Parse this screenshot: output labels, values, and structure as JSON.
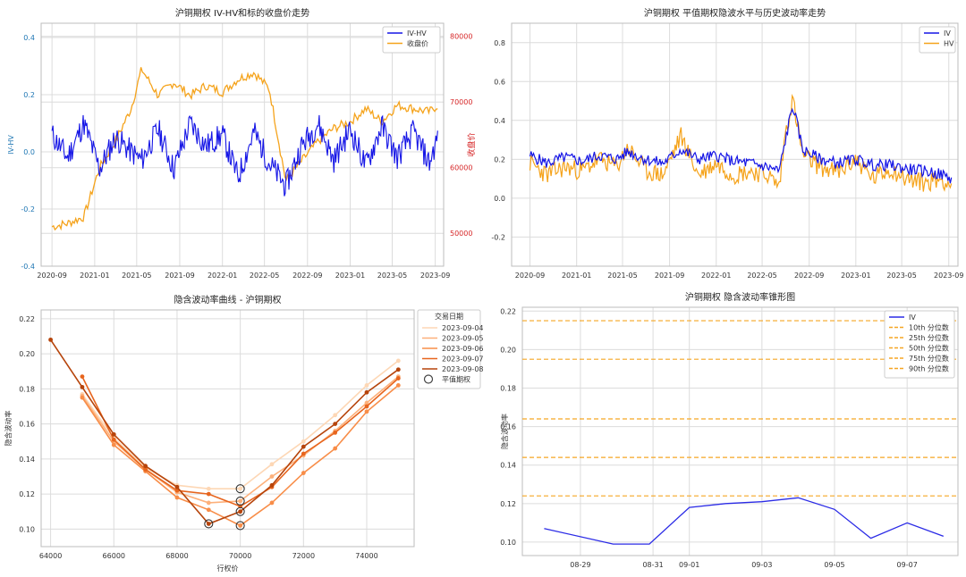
{
  "chart_data": [
    {
      "id": "iv_hv_close",
      "type": "line",
      "title": "沪铜期权 IV-HV和标的收盘价走势",
      "ylabel": "IV-HV",
      "y2label": "收盘价",
      "x_ticks": [
        "2020-09",
        "2021-01",
        "2021-05",
        "2021-09",
        "2022-01",
        "2022-05",
        "2022-09",
        "2023-01",
        "2023-05",
        "2023-09"
      ],
      "y_ticks": [
        "0.4",
        "0.2",
        "0.0",
        "-0.2",
        "-0.4"
      ],
      "y2_ticks": [
        "80000",
        "70000",
        "60000",
        "50000"
      ],
      "ylim": [
        -0.4,
        0.45
      ],
      "y2lim": [
        45000,
        82000
      ],
      "x": [
        "2020-09-01",
        "2020-10-15",
        "2020-12-01",
        "2021-01-15",
        "2021-03-01",
        "2021-04-15",
        "2021-05-15",
        "2021-07-01",
        "2021-08-15",
        "2021-10-01",
        "2021-11-15",
        "2022-01-01",
        "2022-02-15",
        "2022-04-01",
        "2022-05-15",
        "2022-07-01",
        "2022-08-15",
        "2022-10-01",
        "2022-11-15",
        "2023-01-01",
        "2023-02-15",
        "2023-04-01",
        "2023-05-15",
        "2023-07-01",
        "2023-08-15",
        "2023-09-08"
      ],
      "series": [
        {
          "name": "IV-HV",
          "axis": "left",
          "color": "#1515e6",
          "values": [
            0.06,
            -0.02,
            0.1,
            -0.06,
            0.05,
            0.0,
            -0.03,
            0.08,
            -0.06,
            0.1,
            0.02,
            0.06,
            -0.09,
            0.07,
            -0.04,
            -0.12,
            0.02,
            0.1,
            -0.03,
            0.08,
            -0.05,
            0.09,
            -0.02,
            0.07,
            -0.04,
            0.05
          ]
        },
        {
          "name": "收盘价",
          "axis": "right",
          "color": "#f5a31b",
          "values": [
            51000,
            51500,
            52500,
            60000,
            64000,
            69000,
            75000,
            71000,
            73000,
            71000,
            72500,
            71500,
            73500,
            74500,
            72000,
            58000,
            61000,
            64000,
            66000,
            67000,
            69000,
            67000,
            69500,
            69000,
            68500,
            69500
          ]
        }
      ],
      "legend": "top-right",
      "grid": true
    },
    {
      "id": "atm_iv_hv",
      "type": "line",
      "title": "沪铜期权 平值期权隐波水平与历史波动率走势",
      "x_ticks": [
        "2020-09",
        "2021-01",
        "2021-05",
        "2021-09",
        "2022-01",
        "2022-05",
        "2022-09",
        "2023-01",
        "2023-05",
        "2023-09"
      ],
      "y_ticks": [
        "0.8",
        "0.6",
        "0.4",
        "0.2",
        "0.0",
        "-0.2"
      ],
      "ylim": [
        -0.35,
        0.9
      ],
      "x": [
        "2020-09-01",
        "2020-10-15",
        "2020-12-01",
        "2021-01-15",
        "2021-03-01",
        "2021-04-15",
        "2021-05-15",
        "2021-07-01",
        "2021-08-15",
        "2021-10-01",
        "2021-11-15",
        "2022-01-01",
        "2022-02-15",
        "2022-04-01",
        "2022-05-15",
        "2022-06-15",
        "2022-07-01",
        "2022-07-20",
        "2022-08-15",
        "2022-10-01",
        "2022-11-15",
        "2023-01-01",
        "2023-02-15",
        "2023-04-01",
        "2023-05-15",
        "2023-07-01",
        "2023-08-15",
        "2023-09-08"
      ],
      "series": [
        {
          "name": "IV",
          "color": "#1515e6",
          "values": [
            0.22,
            0.18,
            0.21,
            0.19,
            0.22,
            0.2,
            0.24,
            0.2,
            0.18,
            0.25,
            0.2,
            0.22,
            0.19,
            0.18,
            0.16,
            0.14,
            0.3,
            0.48,
            0.25,
            0.2,
            0.18,
            0.2,
            0.17,
            0.17,
            0.15,
            0.14,
            0.12,
            0.1
          ]
        },
        {
          "name": "HV",
          "color": "#f5a31b",
          "values": [
            0.18,
            0.12,
            0.16,
            0.14,
            0.2,
            0.16,
            0.26,
            0.14,
            0.12,
            0.32,
            0.12,
            0.18,
            0.12,
            0.14,
            0.12,
            0.06,
            0.34,
            0.51,
            0.22,
            0.16,
            0.13,
            0.2,
            0.1,
            0.15,
            0.1,
            0.08,
            0.1,
            0.06
          ]
        }
      ],
      "legend": "top-right",
      "grid": true
    },
    {
      "id": "smile",
      "type": "line",
      "title": "隐含波动率曲线 - 沪铜期权",
      "xlabel": "行权价",
      "ylabel": "隐含波动率",
      "legend_title": "交易日期",
      "legend_atm": "平值期权",
      "x_ticks": [
        "64000",
        "66000",
        "68000",
        "70000",
        "72000",
        "74000"
      ],
      "y_ticks": [
        "0.22",
        "0.20",
        "0.18",
        "0.16",
        "0.14",
        "0.12",
        "0.10"
      ],
      "xlim": [
        63700,
        75500
      ],
      "ylim": [
        0.09,
        0.225
      ],
      "series": [
        {
          "name": "2023-09-04",
          "color": "#fdd7b5",
          "x": [
            65000,
            66000,
            67000,
            68000,
            69000,
            70000,
            71000,
            72000,
            73000,
            74000,
            75000
          ],
          "values": [
            0.177,
            0.152,
            0.135,
            0.125,
            0.123,
            0.123,
            0.137,
            0.15,
            0.165,
            0.182,
            0.196
          ],
          "atm": [
            70000,
            0.123
          ]
        },
        {
          "name": "2023-09-05",
          "color": "#fdb07a",
          "x": [
            65000,
            66000,
            67000,
            68000,
            69000,
            70000,
            71000,
            72000,
            73000,
            74000,
            75000
          ],
          "values": [
            0.176,
            0.15,
            0.134,
            0.121,
            0.115,
            0.116,
            0.13,
            0.142,
            0.156,
            0.172,
            0.187
          ],
          "atm": [
            70000,
            0.116
          ]
        },
        {
          "name": "2023-09-06",
          "color": "#f88d48",
          "x": [
            65000,
            66000,
            67000,
            68000,
            69000,
            70000,
            71000,
            72000,
            73000,
            74000,
            75000
          ],
          "values": [
            0.175,
            0.148,
            0.133,
            0.118,
            0.111,
            0.102,
            0.115,
            0.132,
            0.146,
            0.167,
            0.182
          ],
          "atm": [
            70000,
            0.102
          ]
        },
        {
          "name": "2023-09-07",
          "color": "#e7651e",
          "x": [
            65000,
            66000,
            67000,
            68000,
            69000,
            70000,
            71000,
            72000,
            73000,
            74000,
            75000
          ],
          "values": [
            0.187,
            0.151,
            0.134,
            0.122,
            0.12,
            0.113,
            0.124,
            0.143,
            0.155,
            0.17,
            0.186
          ],
          "atm": [
            70000,
            0.11
          ]
        },
        {
          "name": "2023-09-08",
          "color": "#b6440b",
          "x": [
            64000,
            65000,
            66000,
            67000,
            68000,
            69000,
            70000,
            71000,
            72000,
            73000,
            74000,
            75000
          ],
          "values": [
            0.208,
            0.181,
            0.154,
            0.136,
            0.124,
            0.103,
            0.11,
            0.125,
            0.147,
            0.16,
            0.178,
            0.191
          ],
          "atm": [
            69000,
            0.103
          ]
        }
      ],
      "legend": "top-right",
      "grid": true
    },
    {
      "id": "cone",
      "type": "line",
      "title": "沪铜期权 隐含波动率锥形图",
      "ylabel": "隐含波动率",
      "x_ticks": [
        "08-29",
        "08-31",
        "09-01",
        "09-03",
        "09-05",
        "09-07"
      ],
      "x_tick_days": [
        2,
        4,
        5,
        7,
        9,
        11
      ],
      "y_ticks": [
        "0.22",
        "0.20",
        "0.18",
        "0.16",
        "0.14",
        "0.12",
        "0.10"
      ],
      "ylim": [
        0.093,
        0.222
      ],
      "xlim": [
        0.4,
        12.4
      ],
      "series": [
        {
          "name": "IV",
          "color": "#2b2be6",
          "x": [
            1,
            2.9,
            3.9,
            5,
            6,
            7,
            8,
            9,
            10,
            11,
            12
          ],
          "values": [
            0.107,
            0.099,
            0.099,
            0.118,
            0.12,
            0.121,
            0.123,
            0.117,
            0.102,
            0.11,
            0.103
          ]
        }
      ],
      "percentiles": [
        {
          "name": "10th 分位数",
          "value": 0.124,
          "color": "#f5a623"
        },
        {
          "name": "25th 分位数",
          "value": 0.144,
          "color": "#f5a623"
        },
        {
          "name": "50th 分位数",
          "value": 0.164,
          "color": "#f5a623"
        },
        {
          "name": "75th 分位数",
          "value": 0.195,
          "color": "#f5a623"
        },
        {
          "name": "90th 分位数",
          "value": 0.215,
          "color": "#f5a623"
        }
      ],
      "legend": "top-right",
      "grid": true
    }
  ]
}
